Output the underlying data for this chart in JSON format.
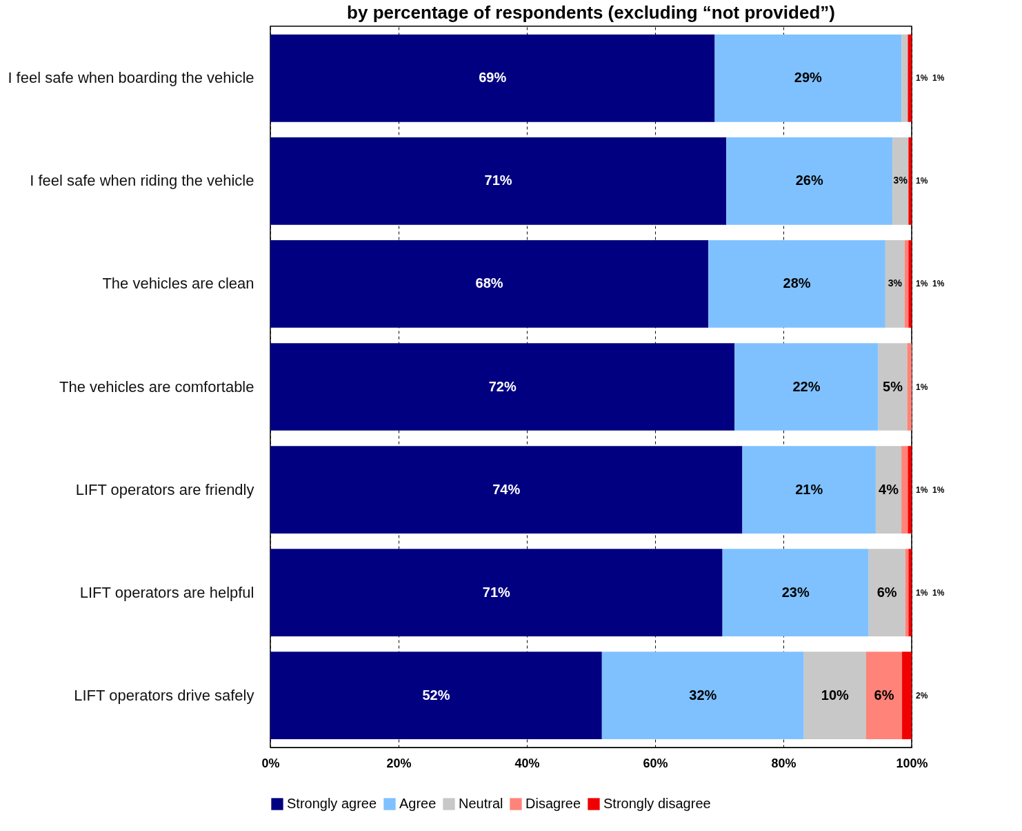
{
  "chart_data": {
    "type": "bar",
    "orientation": "horizontal",
    "stacked": true,
    "title": "by percentage of respondents (excluding “not provided”)",
    "categories": [
      "I feel safe when boarding the vehicle",
      "I feel safe when riding the vehicle",
      "The vehicles are clean",
      "The vehicles are comfortable",
      "LIFT operators are friendly",
      "LIFT operators are helpful",
      "LIFT operators drive safely"
    ],
    "series": [
      {
        "name": "Strongly agree",
        "color": "#000080",
        "values": [
          69.3,
          71.1,
          68.3,
          72.4,
          73.6,
          70.5,
          51.7
        ],
        "value_labels": [
          "69%",
          "71%",
          "68%",
          "72%",
          "74%",
          "71%",
          "52%"
        ]
      },
      {
        "name": "Agree",
        "color": "#7fc1ff",
        "values": [
          29.1,
          25.9,
          27.6,
          22.4,
          20.8,
          22.8,
          31.5
        ],
        "value_labels": [
          "29%",
          "26%",
          "28%",
          "22%",
          "21%",
          "23%",
          "32%"
        ]
      },
      {
        "name": "Neutral",
        "color": "#c8c8c8",
        "values": [
          1.0,
          2.5,
          3.0,
          4.5,
          4.0,
          5.7,
          9.7
        ],
        "value_labels": [
          "1%",
          "3%",
          "3%",
          "5%",
          "4%",
          "6%",
          "10%"
        ]
      },
      {
        "name": "Disagree",
        "color": "#ff8379",
        "values": [
          0,
          0,
          0.6,
          0.7,
          1.0,
          0.5,
          5.6
        ],
        "value_labels": [
          null,
          null,
          "1%",
          "1%",
          "1%",
          "1%",
          "6%"
        ]
      },
      {
        "name": "Strongly disagree",
        "color": "#f00000",
        "values": [
          0.6,
          0.5,
          0.5,
          0,
          0.6,
          0.5,
          1.5
        ],
        "value_labels": [
          "1%",
          "1%",
          "1%",
          null,
          "1%",
          "1%",
          "2%"
        ]
      }
    ],
    "xlim": [
      0,
      100
    ],
    "xticks": [
      {
        "value": 0,
        "label": "0%"
      },
      {
        "value": 20,
        "label": "20%"
      },
      {
        "value": 40,
        "label": "40%"
      },
      {
        "value": 60,
        "label": "60%"
      },
      {
        "value": 80,
        "label": "80%"
      },
      {
        "value": 100,
        "label": "100%"
      }
    ],
    "grid": "x",
    "legend": "bottom"
  }
}
